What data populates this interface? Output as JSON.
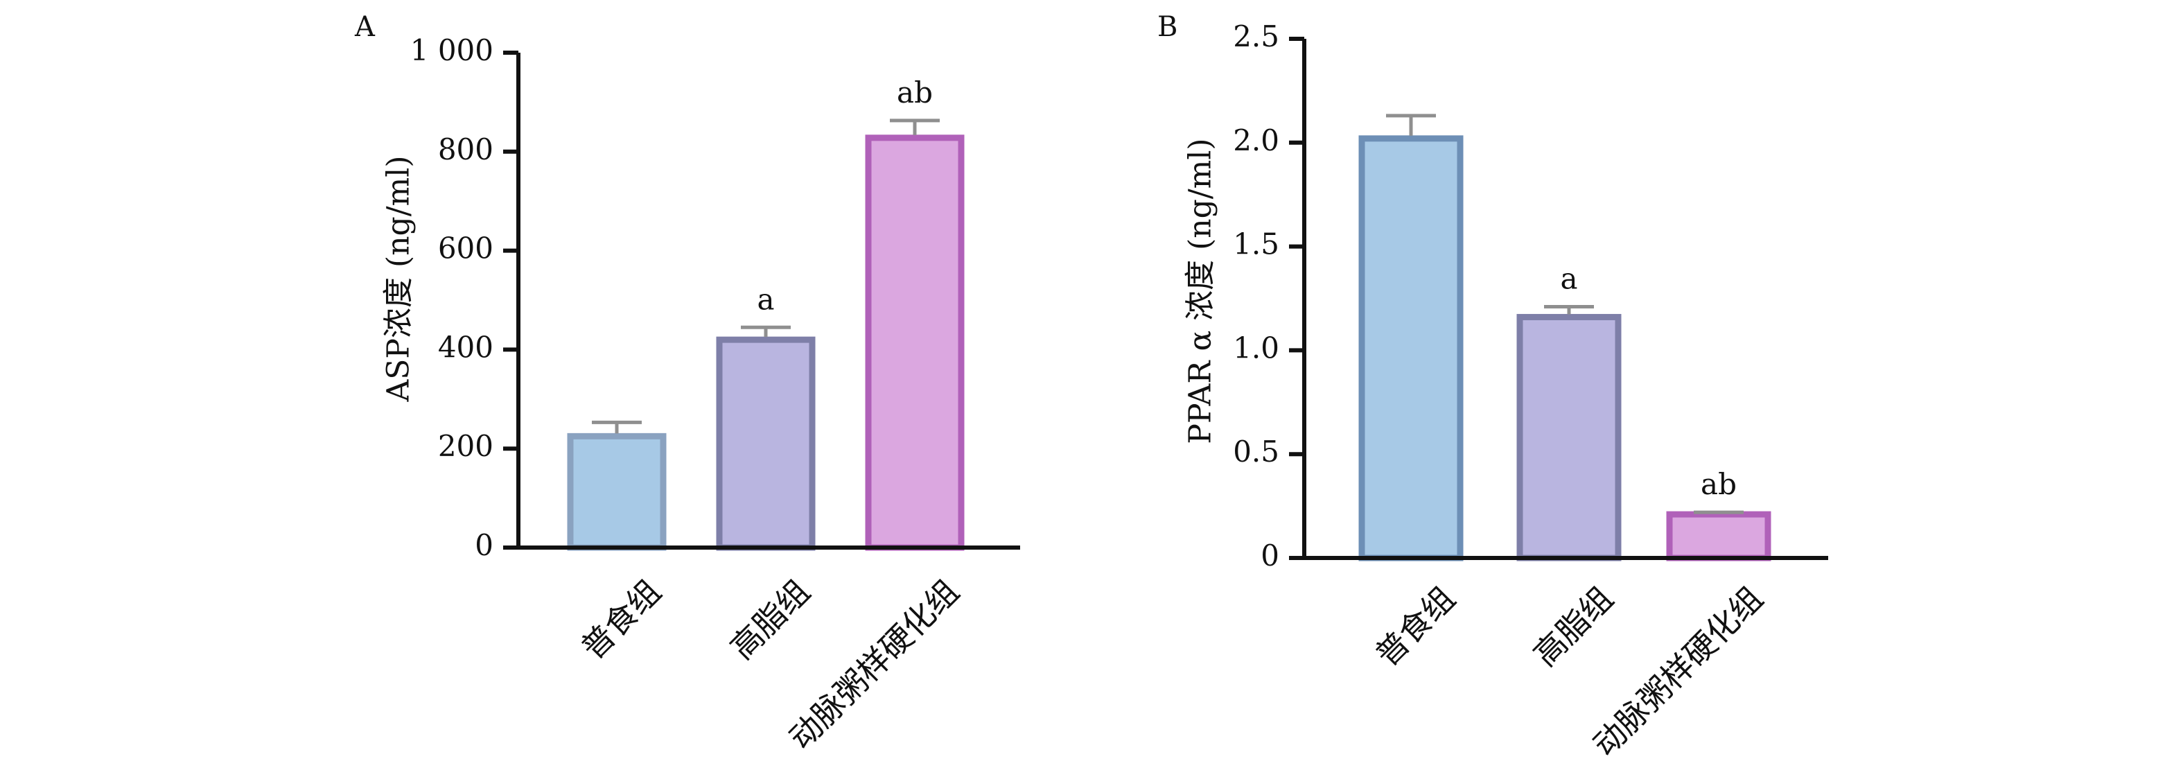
{
  "chart_data": [
    {
      "panel_label": "A",
      "type": "bar",
      "ylabel": "ASP浓度 (ng/ml)",
      "ylim": [
        0,
        1000
      ],
      "ytick_labels": [
        "0",
        "200",
        "400",
        "600",
        "800",
        "1 000"
      ],
      "categories": [
        "普食组",
        "高脂组",
        "动脉粥样硬化组"
      ],
      "values": [
        225,
        420,
        828
      ],
      "error_bars": [
        28,
        25,
        35
      ],
      "annotations": [
        "",
        "a",
        "ab"
      ],
      "colors": {
        "fill": [
          "#a7c9e6",
          "#b9b5e0",
          "#dba7e0"
        ],
        "edge": [
          "#8aa2c0",
          "#7e7fa8",
          "#b061b9"
        ]
      }
    },
    {
      "panel_label": "B",
      "type": "bar",
      "ylabel": "PPAR α 浓度 (ng/ml)",
      "ylim": [
        0,
        2.5
      ],
      "ytick_labels": [
        "0",
        "0.5",
        "1.0",
        "1.5",
        "2.0",
        "2.5"
      ],
      "categories": [
        "普食组",
        "高脂组",
        "动脉粥样硬化组"
      ],
      "values": [
        2.02,
        1.16,
        0.21
      ],
      "error_bars": [
        0.11,
        0.05,
        0.01
      ],
      "annotations": [
        "",
        "a",
        "ab"
      ],
      "colors": {
        "fill": [
          "#a7c9e6",
          "#b9b5e0",
          "#dba7e0"
        ],
        "edge": [
          "#6d8fb6",
          "#7e7fa8",
          "#b061b9"
        ]
      }
    }
  ]
}
